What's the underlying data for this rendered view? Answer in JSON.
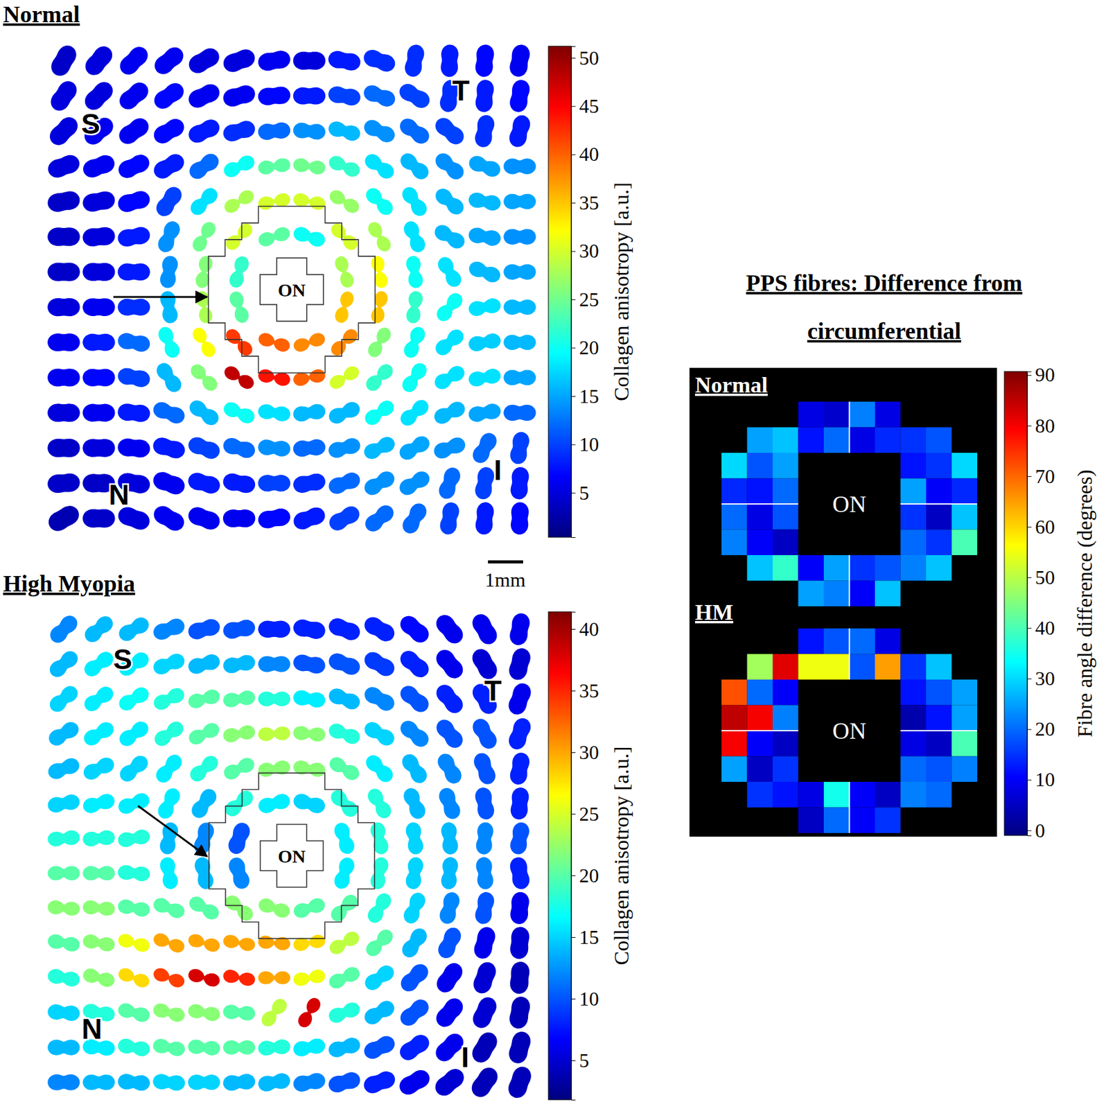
{
  "chart_data": [
    {
      "type": "vector_map",
      "title": "Normal",
      "quadrant_labels": [
        "S",
        "T",
        "N",
        "I"
      ],
      "region_label": "ON",
      "scale_bar": "1mm",
      "colorbar_label": "Collagen anisotropy [a.u.]",
      "color_range": [
        0.4,
        51.2
      ],
      "color_ticks": [
        5,
        10,
        15,
        20,
        25,
        30,
        35,
        40,
        45,
        50
      ],
      "anisotropy": [
        [
          4,
          5,
          6,
          6,
          5,
          5,
          6,
          5,
          8,
          9,
          9,
          8,
          7,
          6
        ],
        [
          5,
          5,
          6,
          7,
          6,
          6,
          7,
          8,
          10,
          12,
          10,
          9,
          8,
          7
        ],
        [
          5,
          6,
          6,
          7,
          8,
          9,
          12,
          14,
          16,
          14,
          12,
          10,
          9,
          8
        ],
        [
          5,
          6,
          7,
          8,
          12,
          20,
          24,
          25,
          22,
          18,
          16,
          14,
          15,
          14
        ],
        [
          4,
          5,
          7,
          10,
          18,
          28,
          30,
          30,
          27,
          20,
          18,
          16,
          16,
          15
        ],
        [
          4,
          5,
          8,
          14,
          25,
          30,
          24,
          20,
          30,
          28,
          18,
          16,
          15,
          14
        ],
        [
          4,
          5,
          8,
          14,
          26,
          22,
          null,
          null,
          28,
          32,
          20,
          18,
          16,
          15
        ],
        [
          5,
          6,
          9,
          16,
          28,
          24,
          null,
          null,
          35,
          35,
          22,
          20,
          18,
          16
        ],
        [
          6,
          8,
          12,
          20,
          32,
          42,
          40,
          38,
          38,
          26,
          20,
          18,
          17,
          16
        ],
        [
          6,
          7,
          10,
          16,
          26,
          48,
          44,
          40,
          30,
          22,
          20,
          18,
          18,
          15
        ],
        [
          5,
          6,
          8,
          12,
          16,
          20,
          18,
          16,
          16,
          20,
          18,
          16,
          15,
          12
        ],
        [
          4,
          5,
          6,
          8,
          10,
          12,
          14,
          12,
          14,
          16,
          15,
          14,
          12,
          10
        ],
        [
          4,
          4,
          5,
          6,
          8,
          8,
          10,
          9,
          12,
          14,
          14,
          12,
          10,
          8
        ],
        [
          3,
          4,
          5,
          6,
          6,
          6,
          7,
          8,
          10,
          12,
          12,
          10,
          8,
          7
        ]
      ],
      "angle": [
        [
          60,
          50,
          45,
          40,
          30,
          20,
          10,
          0,
          -10,
          -20,
          80,
          88,
          85,
          80
        ],
        [
          55,
          45,
          40,
          35,
          25,
          15,
          5,
          0,
          -10,
          -20,
          -30,
          80,
          85,
          80
        ],
        [
          45,
          40,
          35,
          30,
          25,
          15,
          5,
          -5,
          -15,
          -25,
          -35,
          -40,
          80,
          75
        ],
        [
          20,
          20,
          25,
          30,
          35,
          25,
          8,
          -8,
          -23,
          -35,
          -40,
          -40,
          -20,
          0
        ],
        [
          10,
          10,
          15,
          55,
          45,
          31,
          11,
          -11,
          -31,
          -45,
          -55,
          -40,
          -10,
          0
        ],
        [
          0,
          5,
          10,
          67,
          59,
          45,
          18,
          -18,
          -45,
          -59,
          -67,
          -30,
          -10,
          0
        ],
        [
          0,
          0,
          0,
          82,
          79,
          72,
          null,
          null,
          -72,
          -79,
          -82,
          -60,
          -20,
          0
        ],
        [
          0,
          0,
          0,
          -82,
          -79,
          -72,
          null,
          null,
          72,
          79,
          82,
          50,
          10,
          0
        ],
        [
          0,
          0,
          -10,
          -67,
          -59,
          -45,
          -18,
          18,
          45,
          59,
          67,
          40,
          10,
          0
        ],
        [
          0,
          0,
          -10,
          -55,
          -45,
          -31,
          -11,
          11,
          31,
          45,
          55,
          30,
          10,
          0
        ],
        [
          0,
          0,
          -5,
          -20,
          -35,
          -23,
          -8,
          8,
          23,
          35,
          40,
          25,
          10,
          0
        ],
        [
          0,
          0,
          -5,
          -15,
          -20,
          -15,
          -5,
          5,
          15,
          25,
          30,
          20,
          60,
          80
        ],
        [
          5,
          0,
          -10,
          -20,
          -15,
          -10,
          0,
          10,
          20,
          30,
          30,
          70,
          80,
          85
        ],
        [
          30,
          0,
          -20,
          -30,
          -20,
          0,
          10,
          20,
          30,
          40,
          60,
          80,
          85,
          88
        ]
      ]
    },
    {
      "type": "vector_map",
      "title": "High Myopia",
      "quadrant_labels": [
        "S",
        "T",
        "N",
        "I"
      ],
      "region_label": "ON",
      "colorbar_label": "Collagen anisotropy [a.u.]",
      "color_range": [
        1.8,
        41.4
      ],
      "color_ticks": [
        5,
        10,
        15,
        20,
        25,
        30,
        35,
        40
      ],
      "anisotropy": [
        [
          12,
          14,
          14,
          12,
          10,
          10,
          8,
          8,
          8,
          8,
          7,
          6,
          6,
          6
        ],
        [
          14,
          16,
          16,
          15,
          14,
          14,
          12,
          10,
          10,
          9,
          8,
          6,
          5,
          5
        ],
        [
          15,
          16,
          17,
          18,
          20,
          20,
          18,
          16,
          14,
          12,
          10,
          8,
          8,
          6
        ],
        [
          14,
          16,
          16,
          18,
          20,
          22,
          24,
          22,
          18,
          15,
          12,
          10,
          10,
          8
        ],
        [
          14,
          15,
          15,
          16,
          18,
          20,
          22,
          22,
          20,
          16,
          14,
          12,
          10,
          8
        ],
        [
          15,
          16,
          16,
          16,
          14,
          18,
          16,
          15,
          18,
          18,
          14,
          12,
          10,
          8
        ],
        [
          18,
          18,
          18,
          14,
          12,
          10,
          null,
          null,
          16,
          18,
          15,
          14,
          12,
          10
        ],
        [
          20,
          20,
          18,
          16,
          14,
          12,
          null,
          null,
          16,
          18,
          15,
          14,
          12,
          8
        ],
        [
          22,
          22,
          20,
          20,
          20,
          22,
          22,
          20,
          20,
          18,
          15,
          12,
          10,
          6
        ],
        [
          20,
          22,
          26,
          30,
          30,
          30,
          30,
          28,
          24,
          20,
          14,
          10,
          6,
          5
        ],
        [
          18,
          22,
          28,
          34,
          38,
          35,
          30,
          26,
          20,
          15,
          10,
          6,
          5,
          4
        ],
        [
          15,
          18,
          20,
          22,
          22,
          20,
          24,
          38,
          18,
          14,
          10,
          6,
          5,
          4
        ],
        [
          14,
          16,
          18,
          20,
          20,
          20,
          18,
          16,
          14,
          10,
          8,
          6,
          4,
          4
        ],
        [
          12,
          14,
          14,
          15,
          15,
          14,
          14,
          12,
          10,
          8,
          6,
          5,
          4,
          4
        ]
      ],
      "angle": [
        [
          45,
          40,
          30,
          20,
          15,
          10,
          0,
          -10,
          -20,
          -30,
          -40,
          -50,
          -60,
          80
        ],
        [
          40,
          35,
          30,
          20,
          15,
          10,
          0,
          -10,
          -20,
          -30,
          -40,
          -50,
          -60,
          75
        ],
        [
          40,
          35,
          30,
          25,
          15,
          8,
          0,
          -8,
          -20,
          -30,
          -40,
          -50,
          -60,
          70
        ],
        [
          30,
          30,
          35,
          35,
          25,
          10,
          3,
          -5,
          -20,
          -30,
          -40,
          -50,
          -60,
          70
        ],
        [
          20,
          25,
          40,
          50,
          40,
          25,
          8,
          -8,
          -30,
          -45,
          -55,
          -60,
          -70,
          80
        ],
        [
          10,
          15,
          20,
          65,
          55,
          40,
          15,
          -15,
          -45,
          -59,
          -67,
          -70,
          -80,
          85
        ],
        [
          5,
          5,
          10,
          80,
          75,
          70,
          null,
          null,
          -72,
          -79,
          -82,
          -85,
          85,
          80
        ],
        [
          0,
          0,
          -5,
          -80,
          -78,
          -72,
          null,
          null,
          72,
          79,
          82,
          85,
          -85,
          -80
        ],
        [
          -5,
          -5,
          -10,
          -20,
          -30,
          -40,
          -18,
          18,
          45,
          59,
          67,
          75,
          80,
          85
        ],
        [
          -10,
          -10,
          -15,
          -20,
          -15,
          -10,
          -5,
          10,
          30,
          45,
          55,
          65,
          75,
          85
        ],
        [
          -10,
          -15,
          -20,
          -20,
          -15,
          -10,
          0,
          10,
          25,
          35,
          45,
          55,
          70,
          85
        ],
        [
          -5,
          -10,
          -15,
          -15,
          -10,
          -5,
          50,
          60,
          20,
          30,
          40,
          50,
          65,
          80
        ],
        [
          0,
          -5,
          -10,
          -10,
          -5,
          0,
          5,
          10,
          15,
          25,
          35,
          45,
          60,
          75
        ],
        [
          0,
          0,
          -5,
          -5,
          0,
          5,
          10,
          10,
          15,
          20,
          30,
          40,
          55,
          70
        ]
      ]
    },
    {
      "type": "heatmap",
      "title": [
        "PPS fibres: Difference from",
        "circumferential"
      ],
      "center_label": "ON",
      "colorbar_label": "Fibre angle difference (degrees)",
      "color_range": [
        -1,
        90.7
      ],
      "color_ticks": [
        0,
        10,
        20,
        30,
        40,
        50,
        60,
        70,
        80,
        90
      ],
      "panels": [
        {
          "label": "Normal",
          "cells": [
            [
              null,
              null,
              null,
              8,
              6,
              22,
              8,
              null,
              null,
              null
            ],
            [
              null,
              25,
              28,
              12,
              20,
              8,
              14,
              15,
              18,
              null
            ],
            [
              30,
              18,
              25,
              null,
              null,
              null,
              null,
              12,
              15,
              30
            ],
            [
              14,
              12,
              20,
              null,
              null,
              null,
              null,
              25,
              10,
              14
            ],
            [
              20,
              8,
              18,
              null,
              null,
              null,
              null,
              15,
              5,
              28
            ],
            [
              22,
              10,
              5,
              null,
              null,
              null,
              null,
              20,
              15,
              40
            ],
            [
              null,
              28,
              38,
              10,
              25,
              15,
              18,
              22,
              28,
              null
            ],
            [
              null,
              null,
              null,
              25,
              22,
              10,
              28,
              null,
              null,
              null
            ]
          ]
        },
        {
          "label": "HM",
          "cells": [
            [
              null,
              null,
              null,
              12,
              18,
              20,
              8,
              null,
              null,
              null
            ],
            [
              null,
              48,
              82,
              55,
              55,
              18,
              65,
              15,
              28,
              null
            ],
            [
              72,
              20,
              10,
              null,
              null,
              null,
              null,
              12,
              18,
              25
            ],
            [
              85,
              80,
              22,
              null,
              null,
              null,
              null,
              3,
              12,
              25
            ],
            [
              80,
              10,
              5,
              null,
              null,
              null,
              null,
              8,
              5,
              40
            ],
            [
              25,
              5,
              15,
              null,
              null,
              null,
              null,
              20,
              18,
              22
            ],
            [
              null,
              15,
              12,
              8,
              35,
              10,
              5,
              22,
              20,
              null
            ],
            [
              null,
              null,
              null,
              5,
              20,
              10,
              15,
              null,
              null,
              null
            ]
          ]
        }
      ]
    }
  ]
}
